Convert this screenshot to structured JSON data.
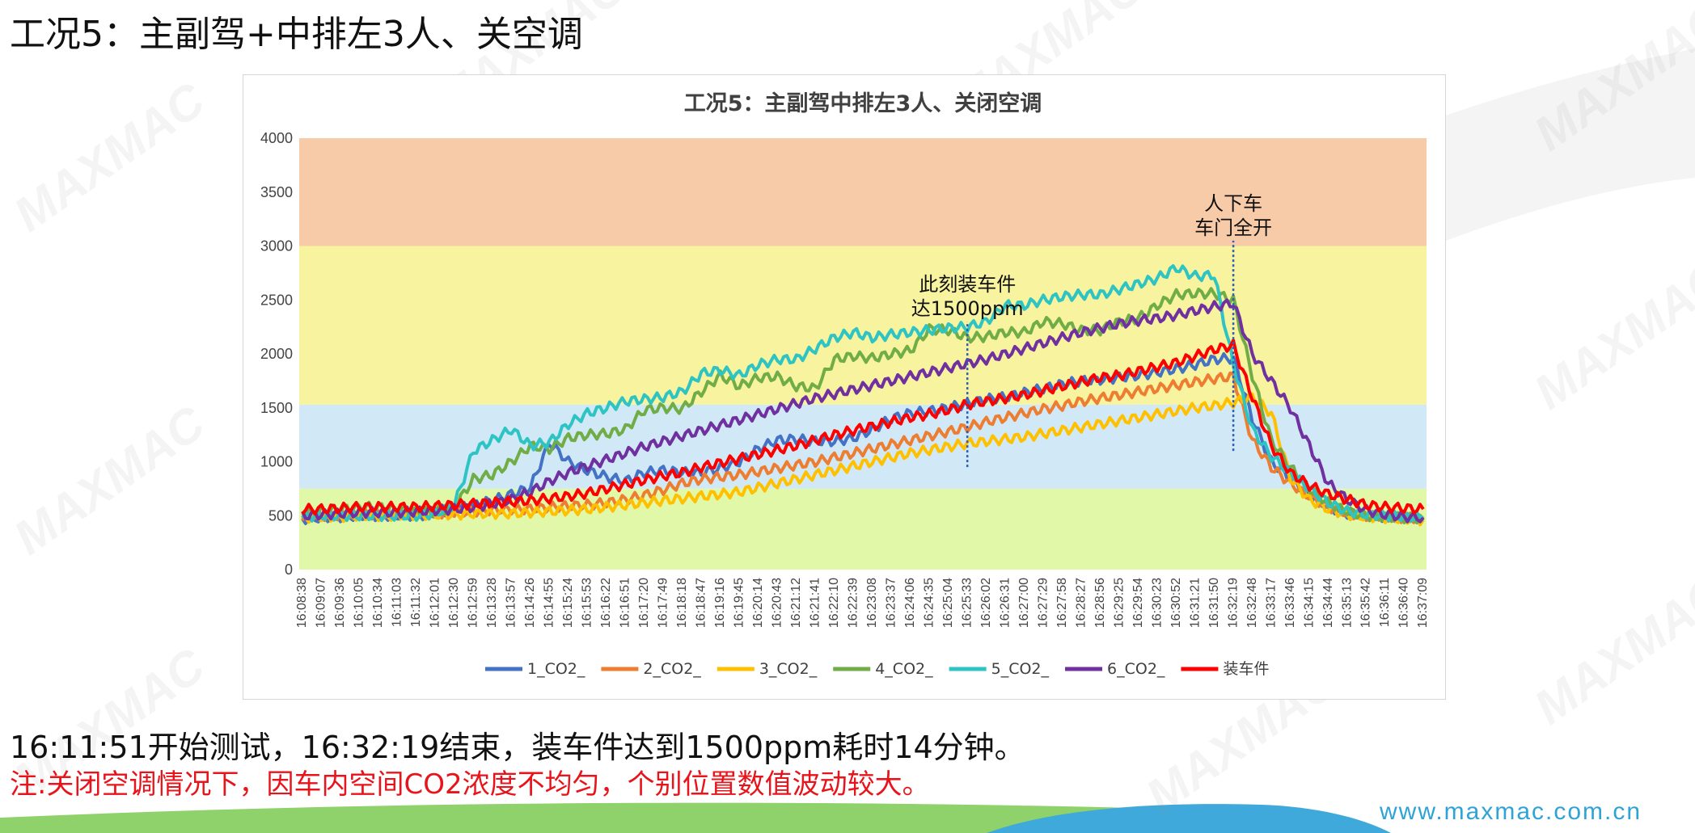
{
  "slide": {
    "title": "工况5：主副驾+中排左3人、关空调",
    "summary": "16:11:51开始测试，16:32:19结束，装车件达到1500ppm耗时14分钟。",
    "note": "注:关闭空调情况下，因车内空间CO2浓度不均匀，个别位置数值波动较大。",
    "website": "www.maxmac.com.cn",
    "watermark": "MAXMAC",
    "colors": {
      "title": "#111111",
      "note": "#e8141b",
      "website": "#2fa3d6"
    }
  },
  "chart_data": {
    "type": "line",
    "title": "工况5：主副驾中排左3人、关闭空调",
    "xlabel": "",
    "ylabel": "",
    "ylim": [
      0,
      4000
    ],
    "y_ticks": [
      0,
      500,
      1000,
      1500,
      2000,
      2500,
      3000,
      3500,
      4000
    ],
    "grid": false,
    "legend_position": "bottom",
    "x": [
      "16:08:38",
      "16:09:07",
      "16:09:36",
      "16:10:05",
      "16:10:34",
      "16:11:03",
      "16:11:32",
      "16:12:01",
      "16:12:30",
      "16:12:59",
      "16:13:28",
      "16:13:57",
      "16:14:26",
      "16:14:55",
      "16:15:24",
      "16:15:53",
      "16:16:22",
      "16:16:51",
      "16:17:20",
      "16:17:49",
      "16:18:18",
      "16:18:47",
      "16:19:16",
      "16:19:45",
      "16:20:14",
      "16:20:43",
      "16:21:12",
      "16:21:41",
      "16:22:10",
      "16:22:39",
      "16:23:08",
      "16:23:37",
      "16:24:06",
      "16:24:35",
      "16:25:04",
      "16:25:33",
      "16:26:02",
      "16:26:31",
      "16:27:00",
      "16:27:29",
      "16:27:58",
      "16:28:27",
      "16:28:56",
      "16:29:25",
      "16:29:54",
      "16:30:23",
      "16:30:52",
      "16:31:21",
      "16:31:50",
      "16:32:19",
      "16:32:48",
      "16:33:17",
      "16:33:46",
      "16:34:15",
      "16:34:44",
      "16:35:13",
      "16:35:42",
      "16:36:11",
      "16:36:40",
      "16:37:09"
    ],
    "bands": [
      {
        "from": 0,
        "to": 750,
        "color": "#e2f8a9"
      },
      {
        "from": 750,
        "to": 1530,
        "color": "#d1e9f6"
      },
      {
        "from": 1530,
        "to": 3000,
        "color": "#f8f39f"
      },
      {
        "from": 3000,
        "to": 4000,
        "color": "#f7cba8"
      }
    ],
    "series": [
      {
        "name": "1_CO2_",
        "color": "#4472c4",
        "values": [
          470,
          480,
          490,
          500,
          500,
          500,
          500,
          520,
          560,
          600,
          640,
          700,
          760,
          1180,
          1000,
          920,
          860,
          820,
          900,
          920,
          900,
          900,
          940,
          1000,
          1120,
          1200,
          1210,
          1190,
          1190,
          1220,
          1300,
          1400,
          1450,
          1470,
          1500,
          1540,
          1580,
          1600,
          1640,
          1680,
          1720,
          1750,
          1760,
          1780,
          1800,
          1830,
          1860,
          1900,
          1950,
          1960,
          1400,
          1000,
          850,
          700,
          580,
          520,
          500,
          490,
          480,
          480
        ]
      },
      {
        "name": "2_CO2_",
        "color": "#ed7d31",
        "values": [
          490,
          500,
          500,
          510,
          510,
          510,
          520,
          520,
          530,
          540,
          550,
          560,
          560,
          580,
          590,
          600,
          620,
          650,
          690,
          740,
          800,
          840,
          860,
          880,
          910,
          940,
          970,
          1000,
          1040,
          1080,
          1120,
          1160,
          1200,
          1240,
          1280,
          1320,
          1370,
          1410,
          1450,
          1490,
          1520,
          1560,
          1590,
          1620,
          1650,
          1680,
          1710,
          1740,
          1770,
          1790,
          1200,
          950,
          800,
          680,
          580,
          520,
          500,
          490,
          480,
          470
        ]
      },
      {
        "name": "3_CO2_",
        "color": "#ffc000",
        "values": [
          480,
          490,
          490,
          500,
          500,
          500,
          510,
          510,
          510,
          520,
          520,
          520,
          530,
          540,
          550,
          560,
          580,
          600,
          620,
          640,
          660,
          680,
          700,
          720,
          760,
          800,
          840,
          880,
          920,
          960,
          1000,
          1040,
          1080,
          1110,
          1140,
          1170,
          1190,
          1210,
          1230,
          1260,
          1290,
          1320,
          1350,
          1380,
          1410,
          1440,
          1470,
          1500,
          1520,
          1550,
          1600,
          1450,
          850,
          650,
          560,
          510,
          490,
          480,
          470,
          460
        ]
      },
      {
        "name": "4_CO2_",
        "color": "#70ad47",
        "values": [
          520,
          540,
          560,
          580,
          580,
          560,
          540,
          540,
          580,
          840,
          880,
          1000,
          1150,
          1120,
          1220,
          1250,
          1260,
          1300,
          1480,
          1500,
          1490,
          1650,
          1800,
          1700,
          1780,
          1790,
          1700,
          1680,
          1950,
          1980,
          1960,
          2000,
          2030,
          2230,
          2220,
          2150,
          2160,
          2200,
          2200,
          2300,
          2280,
          2220,
          2220,
          2300,
          2330,
          2450,
          2550,
          2560,
          2560,
          2500,
          1800,
          1200,
          950,
          750,
          620,
          540,
          500,
          490,
          480,
          470
        ]
      },
      {
        "name": "5_CO2_",
        "color": "#2ec4c4",
        "values": [
          490,
          500,
          500,
          500,
          500,
          500,
          500,
          520,
          600,
          1100,
          1200,
          1300,
          1150,
          1180,
          1350,
          1450,
          1500,
          1560,
          1580,
          1600,
          1650,
          1820,
          1850,
          1800,
          1900,
          1950,
          1950,
          2050,
          2150,
          2200,
          2150,
          2180,
          2200,
          2220,
          2240,
          2250,
          2300,
          2450,
          2450,
          2500,
          2530,
          2550,
          2550,
          2600,
          2650,
          2700,
          2800,
          2720,
          2730,
          1900,
          1300,
          1050,
          900,
          750,
          620,
          540,
          510,
          500,
          490,
          480
        ]
      },
      {
        "name": "6_CO2_",
        "color": "#7030a0",
        "values": [
          500,
          510,
          520,
          530,
          530,
          530,
          540,
          550,
          560,
          580,
          610,
          650,
          720,
          820,
          900,
          960,
          1020,
          1080,
          1140,
          1190,
          1240,
          1290,
          1340,
          1390,
          1440,
          1490,
          1540,
          1590,
          1630,
          1670,
          1710,
          1750,
          1790,
          1830,
          1870,
          1910,
          1950,
          2000,
          2050,
          2100,
          2150,
          2200,
          2240,
          2280,
          2310,
          2330,
          2360,
          2400,
          2440,
          2470,
          2000,
          1750,
          1500,
          1150,
          800,
          650,
          550,
          510,
          490,
          480
        ]
      },
      {
        "name": "装车件",
        "color": "#ff0000",
        "values": [
          560,
          560,
          570,
          580,
          580,
          580,
          580,
          590,
          600,
          610,
          620,
          630,
          640,
          660,
          680,
          710,
          750,
          790,
          830,
          870,
          900,
          950,
          990,
          1030,
          1070,
          1110,
          1150,
          1200,
          1250,
          1290,
          1330,
          1370,
          1410,
          1440,
          1480,
          1530,
          1560,
          1590,
          1620,
          1660,
          1700,
          1740,
          1780,
          1800,
          1840,
          1880,
          1920,
          1980,
          2040,
          2080,
          1600,
          1150,
          900,
          780,
          700,
          650,
          600,
          580,
          570,
          560
        ]
      }
    ],
    "annotations": [
      {
        "text_lines": [
          "此刻装车件",
          "达1500ppm"
        ],
        "x": "16:25:33",
        "y_from": 950,
        "y_to": 2300
      },
      {
        "text_lines": [
          "人下车",
          "车门全开"
        ],
        "x": "16:32:19",
        "y_from": 1100,
        "y_to": 3050
      }
    ]
  }
}
